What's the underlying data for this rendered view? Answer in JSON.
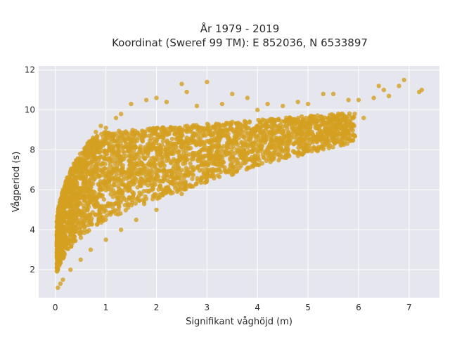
{
  "chart_data": {
    "type": "scatter",
    "title_line1": "År 1979 - 2019",
    "title_line2": "Koordinat (Sweref 99 TM): E 852036, N 6533897",
    "xlabel": "Signifikant våghöjd (m)",
    "ylabel": "Vågperiod (s)",
    "xlim": [
      -0.33,
      7.6
    ],
    "ylim": [
      0.6,
      12.2
    ],
    "x_ticks": [
      0,
      1,
      2,
      3,
      4,
      5,
      6,
      7
    ],
    "y_ticks": [
      2,
      4,
      6,
      8,
      10,
      12
    ],
    "grid": true,
    "marker_color": "#D4A020",
    "plot_bg": "#E6E6EF",
    "series": [
      {
        "values_summary": "dense cloud of wave height vs wave period",
        "points": [
          [
            0.05,
            1.1
          ],
          [
            0.1,
            1.3
          ],
          [
            0.1,
            3.6
          ],
          [
            0.2,
            4.4
          ],
          [
            0.3,
            5.4
          ],
          [
            0.4,
            6.2
          ],
          [
            0.5,
            6.9
          ],
          [
            0.6,
            7.8
          ],
          [
            0.7,
            8.4
          ],
          [
            0.8,
            8.9
          ],
          [
            0.9,
            9.2
          ],
          [
            1.0,
            9.1
          ],
          [
            1.2,
            9.6
          ],
          [
            1.3,
            9.8
          ],
          [
            1.5,
            10.3
          ],
          [
            1.8,
            10.5
          ],
          [
            2.0,
            10.6
          ],
          [
            2.2,
            10.4
          ],
          [
            2.5,
            11.3
          ],
          [
            2.6,
            10.9
          ],
          [
            2.8,
            10.2
          ],
          [
            3.0,
            11.4
          ],
          [
            3.3,
            10.3
          ],
          [
            3.5,
            10.8
          ],
          [
            3.8,
            10.6
          ],
          [
            4.0,
            10.0
          ],
          [
            4.2,
            10.3
          ],
          [
            4.5,
            10.2
          ],
          [
            4.8,
            10.4
          ],
          [
            5.0,
            10.3
          ],
          [
            5.3,
            10.8
          ],
          [
            5.5,
            10.8
          ],
          [
            5.8,
            10.5
          ],
          [
            6.0,
            10.5
          ],
          [
            6.3,
            10.6
          ],
          [
            6.4,
            11.2
          ],
          [
            6.5,
            11.0
          ],
          [
            6.6,
            10.7
          ],
          [
            6.8,
            11.2
          ],
          [
            6.9,
            11.5
          ],
          [
            7.2,
            10.9
          ],
          [
            7.25,
            11.0
          ],
          [
            0.15,
            1.5
          ],
          [
            0.3,
            2.0
          ],
          [
            0.5,
            2.5
          ],
          [
            0.7,
            3.0
          ],
          [
            1.0,
            3.5
          ],
          [
            1.3,
            4.0
          ],
          [
            1.6,
            4.5
          ],
          [
            2.0,
            5.0
          ],
          [
            2.5,
            5.8
          ],
          [
            3.0,
            6.5
          ],
          [
            3.5,
            7.2
          ],
          [
            4.0,
            7.9
          ],
          [
            4.5,
            8.5
          ],
          [
            5.0,
            8.8
          ],
          [
            5.5,
            9.2
          ],
          [
            5.6,
            8.4
          ],
          [
            4.9,
            8.2
          ],
          [
            6.1,
            9.6
          ]
        ]
      }
    ]
  }
}
